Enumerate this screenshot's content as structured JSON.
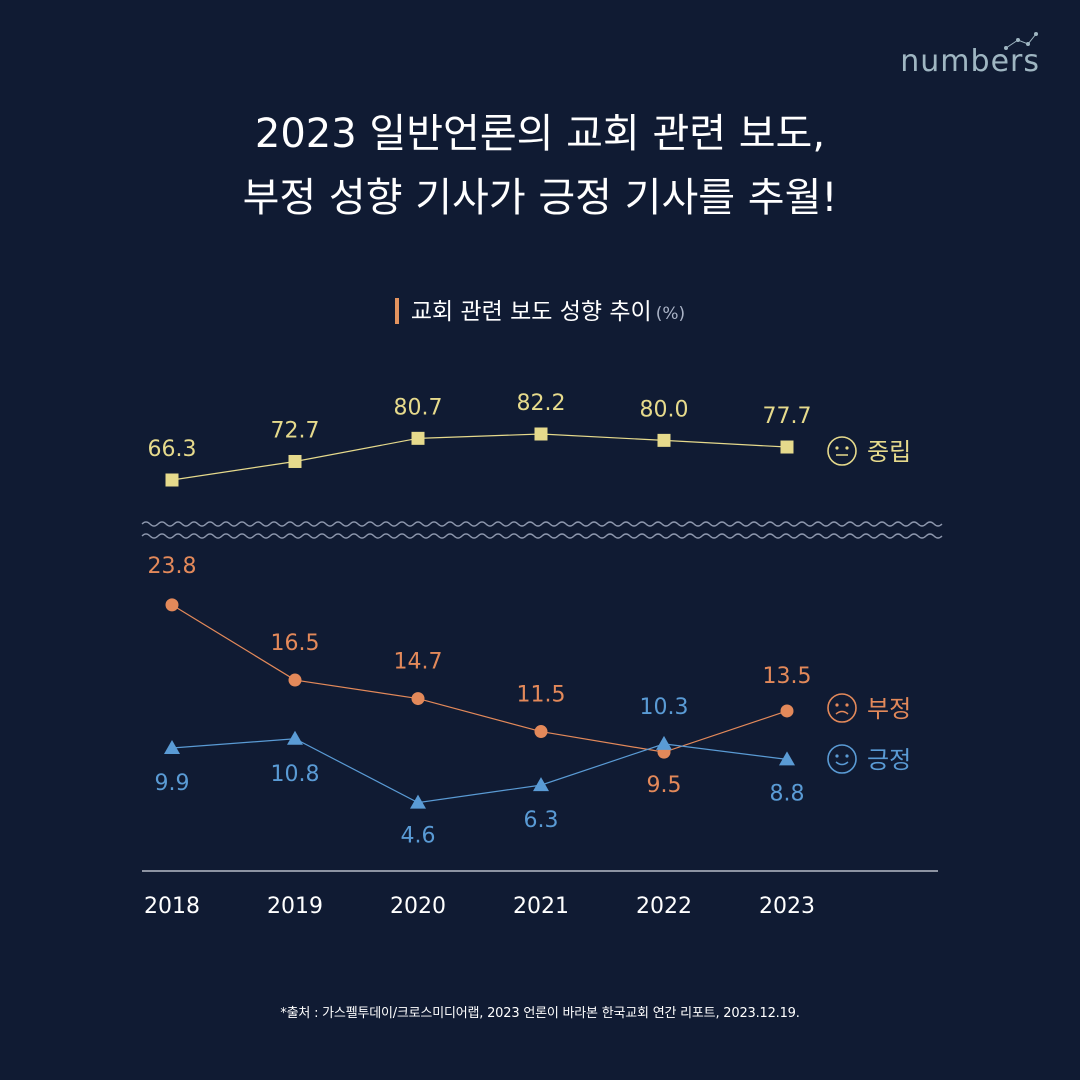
{
  "brand": {
    "logo_text": "numbers"
  },
  "header": {
    "title_line1": "2023 일반언론의 교회 관련 보도,",
    "title_line2": "부정 성향 기사가 긍정 기사를 추월!"
  },
  "chart_data": {
    "type": "line",
    "title": "교회 관련 보도 성향 추이",
    "unit": "(%)",
    "x": [
      "2018",
      "2019",
      "2020",
      "2021",
      "2022",
      "2023"
    ],
    "axis_break": true,
    "series": [
      {
        "name": "중립",
        "values": [
          66.3,
          72.7,
          80.7,
          82.2,
          80.0,
          77.7
        ],
        "labels": [
          "66.3",
          "72.7",
          "80.7",
          "82.2",
          "80.0",
          "77.7"
        ],
        "marker": "square",
        "color": "#e6da8c"
      },
      {
        "name": "부정",
        "values": [
          23.8,
          16.5,
          14.7,
          11.5,
          9.5,
          13.5
        ],
        "labels": [
          "23.8",
          "16.5",
          "14.7",
          "11.5",
          "9.5",
          "13.5"
        ],
        "marker": "circle",
        "color": "#e3895a"
      },
      {
        "name": "긍정",
        "values": [
          9.9,
          10.8,
          4.6,
          6.3,
          10.3,
          8.8
        ],
        "labels": [
          "9.9",
          "10.8",
          "4.6",
          "6.3",
          "10.3",
          "8.8"
        ],
        "marker": "triangle",
        "color": "#5a9bd5"
      }
    ],
    "legend_placement": "right",
    "grid": false
  },
  "footnote": "*출처 : 가스펠투데이/크로스미디어랩, 2023 언론이 바라본 한국교회 연간 리포트, 2023.12.19."
}
